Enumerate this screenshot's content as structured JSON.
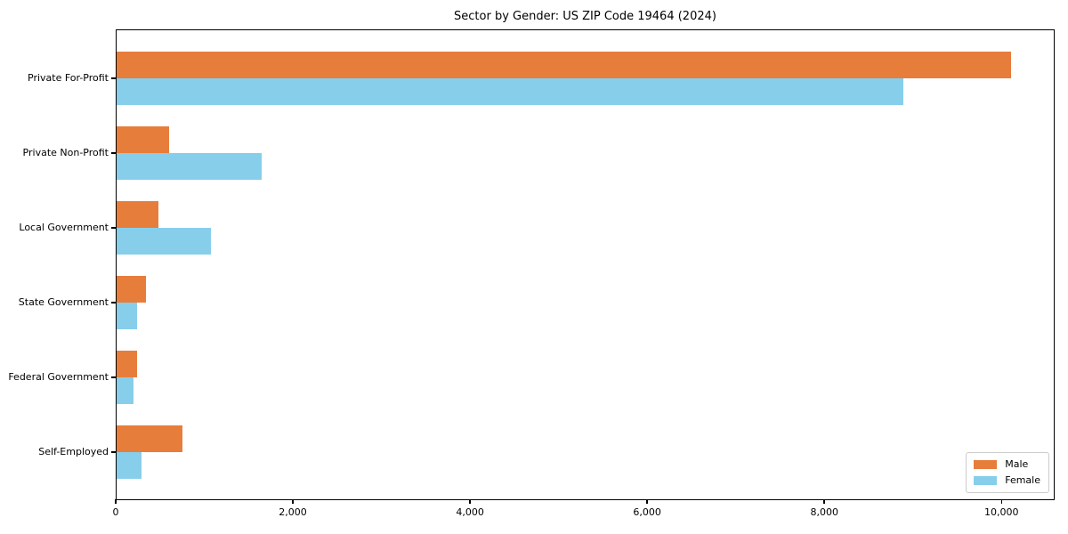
{
  "chart_data": {
    "type": "bar",
    "orientation": "horizontal",
    "title": "Sector by Gender: US ZIP Code 19464 (2024)",
    "categories": [
      "Private For-Profit",
      "Private Non-Profit",
      "Local Government",
      "State Government",
      "Federal Government",
      "Self-Employed"
    ],
    "series": [
      {
        "name": "Male",
        "color": "#E77D3B",
        "values": [
          10100,
          590,
          470,
          330,
          230,
          740
        ]
      },
      {
        "name": "Female",
        "color": "#87CEEB",
        "values": [
          8880,
          1640,
          1070,
          230,
          190,
          280
        ]
      }
    ],
    "xlabel": "",
    "ylabel": "",
    "xlim": [
      0,
      10600
    ],
    "xticks": {
      "values": [
        0,
        2000,
        4000,
        6000,
        8000,
        10000
      ],
      "labels": [
        "0",
        "2,000",
        "4,000",
        "6,000",
        "8,000",
        "10,000"
      ]
    },
    "grid": false,
    "legend_position": "lower right",
    "frame_color": "#000000",
    "background_color": "#ffffff"
  }
}
